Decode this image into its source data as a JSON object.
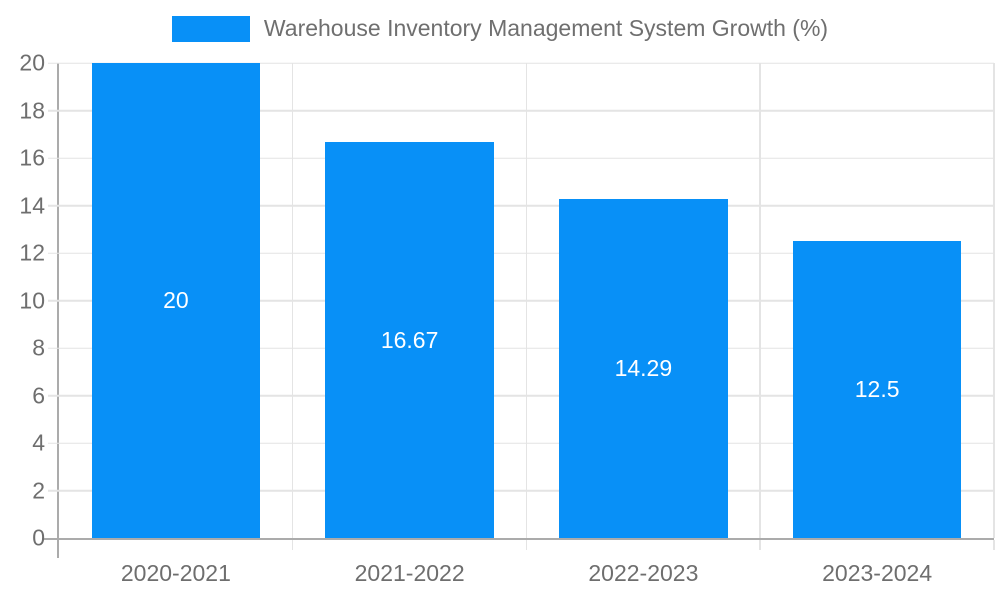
{
  "chart_data": {
    "type": "bar",
    "title": "Warehouse Inventory Management System Growth (%)",
    "categories": [
      "2020-2021",
      "2021-2022",
      "2022-2023",
      "2023-2024"
    ],
    "values": [
      20,
      16.67,
      14.29,
      12.5
    ],
    "value_labels": [
      "20",
      "16.67",
      "14.29",
      "12.5"
    ],
    "xlabel": "",
    "ylabel": "",
    "ylim": [
      0,
      20
    ],
    "ytick_step": 2,
    "grid": "on",
    "legend_position": "top-center"
  },
  "legend": {
    "label": "Warehouse Inventory Management System Growth (%)"
  },
  "colors": {
    "bar": "#0890F7",
    "grid": "#e4e4e4",
    "axis": "#ababab",
    "tick_text": "#6e6e6e",
    "legend_text": "#6f6f6f",
    "value_text": "#ffffff",
    "background": "#ffffff"
  }
}
